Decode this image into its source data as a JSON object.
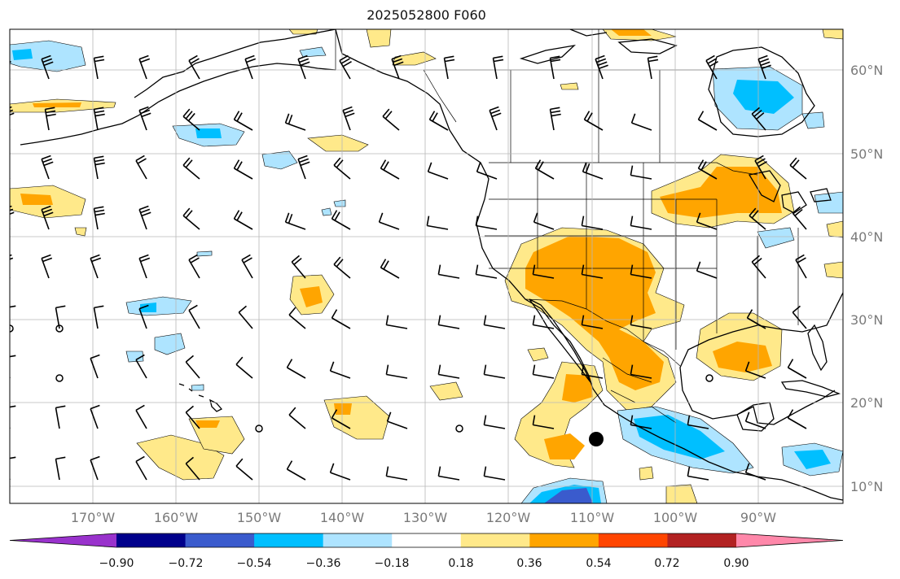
{
  "title": "2025052800 F060",
  "lat_ticks": [
    "60°N",
    "50°N",
    "40°N",
    "30°N",
    "20°N",
    "10°N"
  ],
  "lon_ticks": [
    "170°W",
    "160°W",
    "150°W",
    "140°W",
    "130°W",
    "120°W",
    "110°W",
    "100°W",
    "90°W"
  ],
  "colorbar": {
    "colors": [
      "#9932cc",
      "#00008b",
      "#3a5bcd",
      "#00bfff",
      "#aee4ff",
      "#ffffff",
      "#ffe98a",
      "#ffa500",
      "#ff4500",
      "#b22222",
      "#ff88aa"
    ],
    "labels": [
      "−0.90",
      "−0.72",
      "−0.54",
      "−0.36",
      "−0.18",
      "0.18",
      "0.36",
      "0.54",
      "0.72",
      "0.90"
    ]
  },
  "shading_colors": {
    "pos_light": "#ffe98a",
    "pos_mid": "#ffa500",
    "neg_light": "#aee4ff",
    "neg_mid": "#00bfff",
    "neg_deep": "#3a5bcd"
  }
}
